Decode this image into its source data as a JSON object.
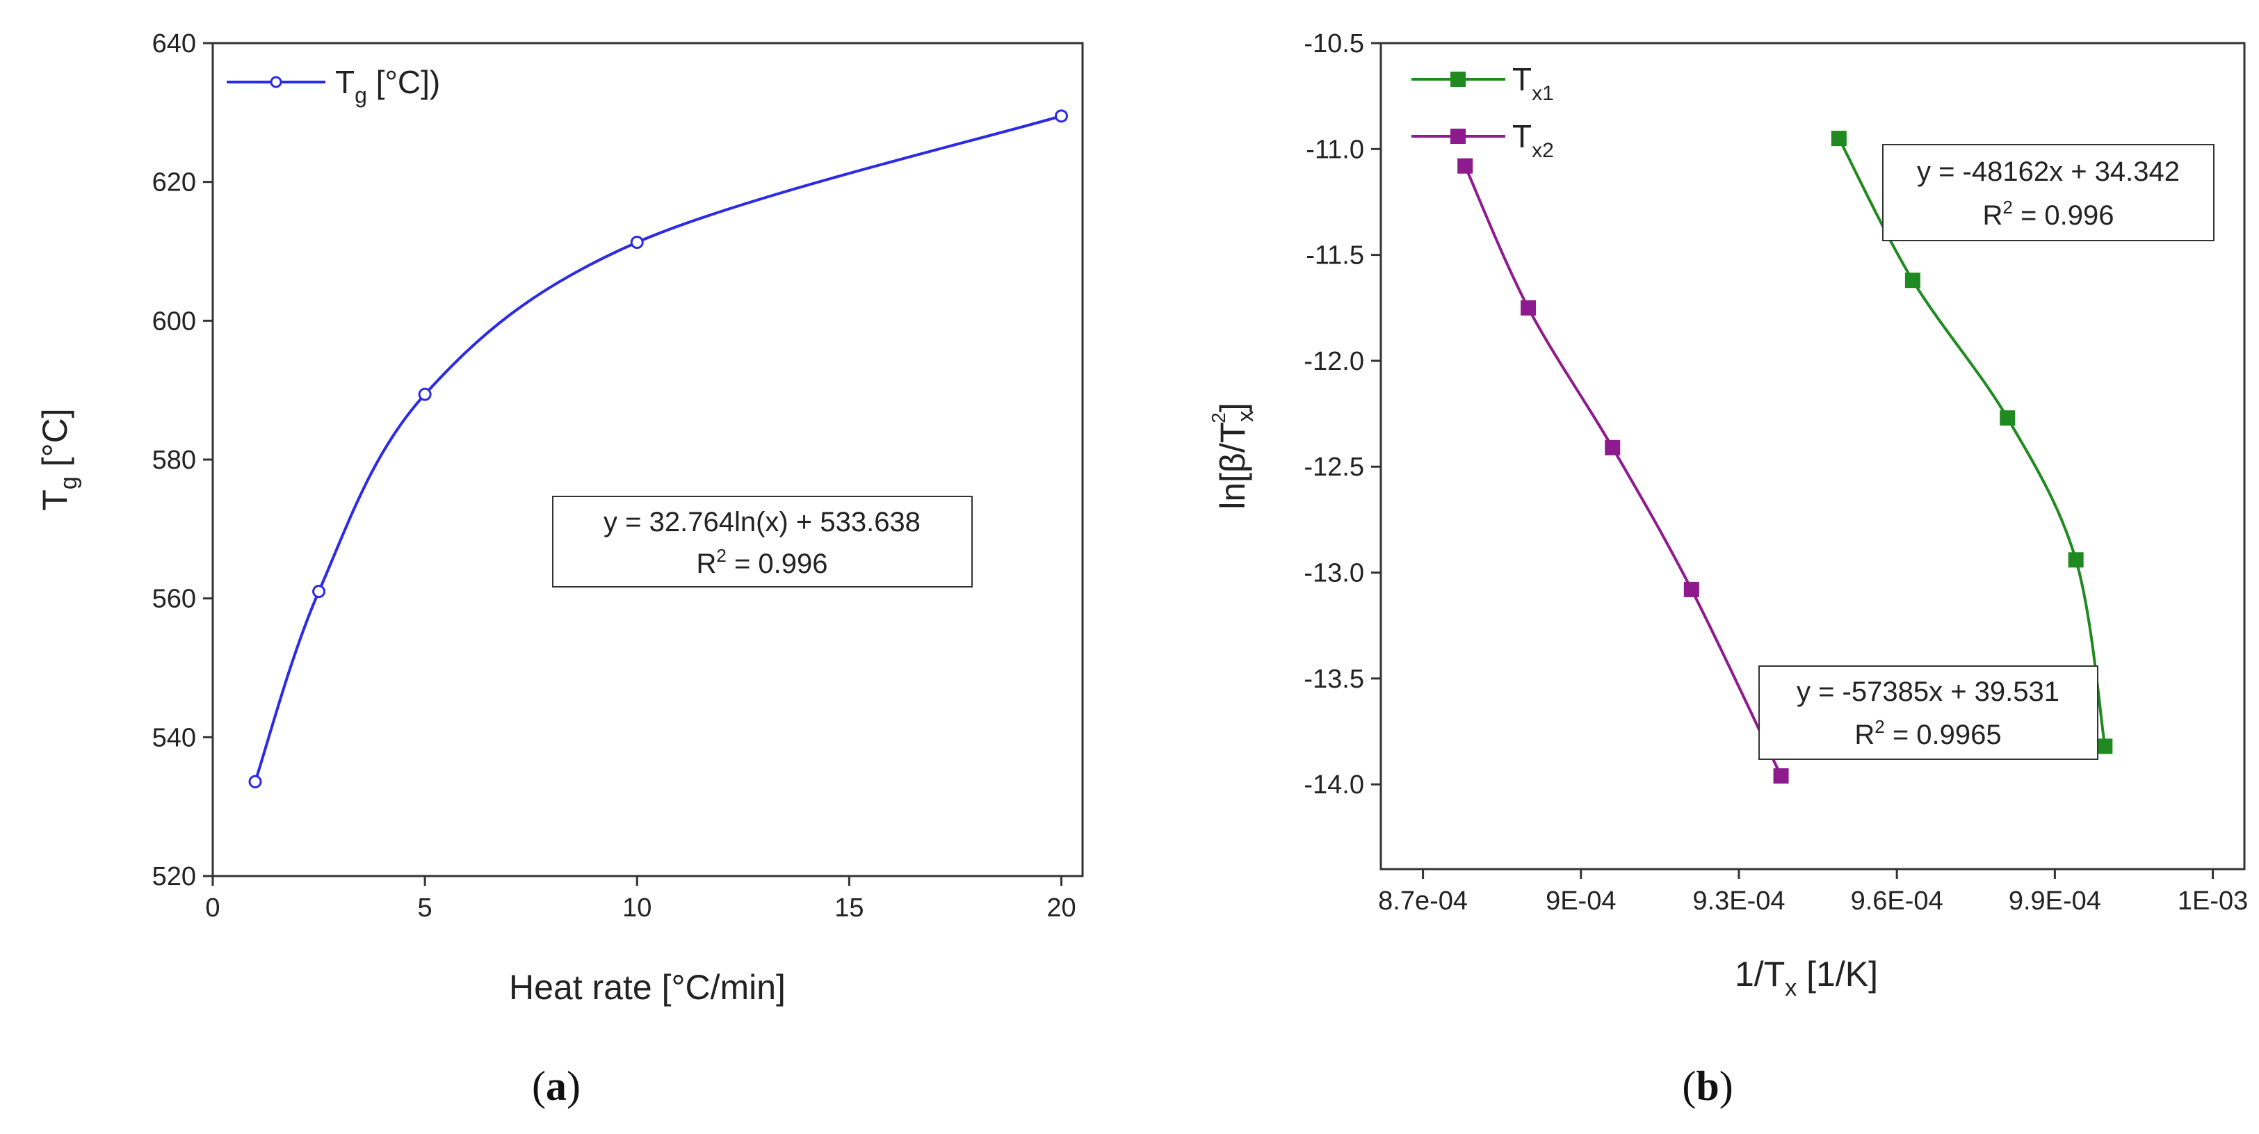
{
  "chart_data": [
    {
      "panel": "a",
      "type": "line",
      "marker": "open-circle",
      "series": [
        {
          "name": "Tg [°C])",
          "legend_main": "T",
          "legend_sub": "g",
          "legend_rest": " [°C])",
          "color": "#2a2ae8",
          "x": [
            1,
            2.5,
            5,
            10,
            20
          ],
          "y": [
            533.6,
            561.0,
            589.4,
            611.3,
            629.5
          ]
        }
      ],
      "x_ticks": [
        "0",
        "5",
        "10",
        "15",
        "20"
      ],
      "x_tick_values": [
        0,
        5,
        10,
        15,
        20
      ],
      "y_ticks": [
        "520",
        "540",
        "560",
        "580",
        "600",
        "620",
        "640"
      ],
      "y_tick_values": [
        520,
        540,
        560,
        580,
        600,
        620,
        640
      ],
      "xlim": [
        0,
        20.5
      ],
      "ylim": [
        520,
        640
      ],
      "xlabel": "Heat rate [°C/min]",
      "ylabel_main": "T",
      "ylabel_sub": "g",
      "ylabel_rest": " [°C]",
      "annotations": [
        {
          "line1": "y = 32.764ln(x) + 533.638",
          "line2_main": "R",
          "line2_sup": "2",
          "line2_rest": " = 0.996"
        }
      ],
      "panel_label_prefix": "(",
      "panel_label_letter": "a",
      "panel_label_suffix": ")"
    },
    {
      "panel": "b",
      "type": "line",
      "marker": "filled-square",
      "series": [
        {
          "name": "Tx1",
          "legend_main": "T",
          "legend_sub": "x1",
          "color": "#1f8a1f",
          "x": [
            0.000949,
            0.000963,
            0.000981,
            0.000994,
            0.0009995
          ],
          "y": [
            -10.95,
            -11.62,
            -12.27,
            -12.94,
            -13.82
          ]
        },
        {
          "name": "Tx2",
          "legend_main": "T",
          "legend_sub": "x2",
          "color": "#8e1a8e",
          "x": [
            0.000878,
            0.00089,
            0.000906,
            0.000921,
            0.000938
          ],
          "y": [
            -11.08,
            -11.75,
            -12.41,
            -13.08,
            -13.96
          ]
        }
      ],
      "x_ticks": [
        "8.7e-04",
        "9E-04",
        "9.3E-04",
        "9.6E-04",
        "9.9E-04",
        "1E-03"
      ],
      "x_tick_values": [
        0.00087,
        0.0009,
        0.00093,
        0.00096,
        0.00099,
        0.00102
      ],
      "y_ticks": [
        "-10.5",
        "-11.0",
        "-11.5",
        "-12.0",
        "-12.5",
        "-13.0",
        "-13.5",
        "-14.0"
      ],
      "y_tick_values": [
        -10.5,
        -11.0,
        -11.5,
        -12.0,
        -12.5,
        -13.0,
        -13.5,
        -14.0
      ],
      "xlim": [
        0.000862,
        0.001026
      ],
      "ylim": [
        -14.4,
        -10.5
      ],
      "xlabel_main": "1/T",
      "xlabel_sub": "x",
      "xlabel_rest": " [1/K]",
      "ylabel_main": "ln[β/T",
      "ylabel_sub": "x",
      "ylabel_sup": "2",
      "ylabel_rest": "]",
      "annotations": [
        {
          "line1": "y = -48162x + 34.342",
          "line2_main": "R",
          "line2_sup": "2",
          "line2_rest": " = 0.996"
        },
        {
          "line1": "y = -57385x + 39.531",
          "line2_main": "R",
          "line2_sup": "2",
          "line2_rest": " = 0.9965"
        }
      ],
      "panel_label_prefix": "(",
      "panel_label_letter": "b",
      "panel_label_suffix": ")"
    }
  ]
}
